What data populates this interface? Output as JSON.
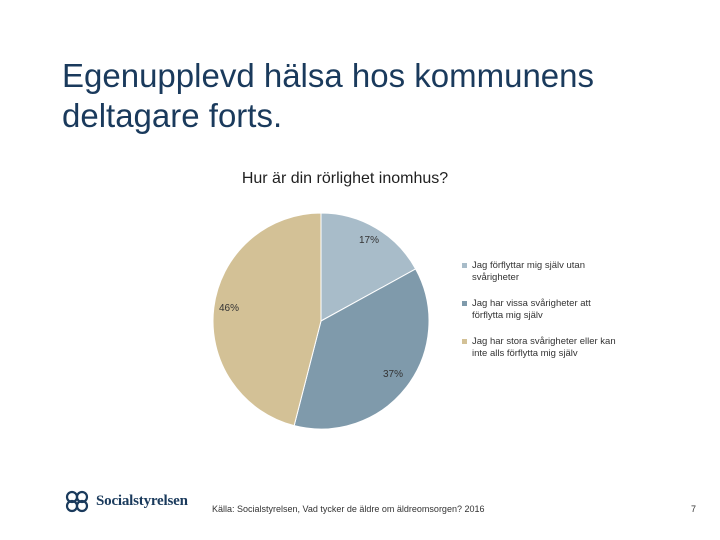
{
  "slide": {
    "title": "Egenupplevd hälsa hos kommunens deltagare forts.",
    "source": "Källa: Socialstyrelsen, Vad tycker de äldre om äldreomsorgen? 2016",
    "page_number": "7",
    "logo_text": "Socialstyrelsen"
  },
  "chart_data": {
    "type": "pie",
    "title": "Hur är din rörlighet inomhus?",
    "categories": [
      "Jag förflyttar mig själv utan svårigheter",
      "Jag har vissa svårigheter att förflytta mig själv",
      "Jag har stora svårigheter eller kan inte alls förflytta mig själv"
    ],
    "values": [
      17,
      37,
      46
    ],
    "data_labels": [
      "17%",
      "37%",
      "46%"
    ],
    "colors": [
      "#a8bcc9",
      "#7f9aab",
      "#d3c196"
    ],
    "legend_position": "right"
  }
}
